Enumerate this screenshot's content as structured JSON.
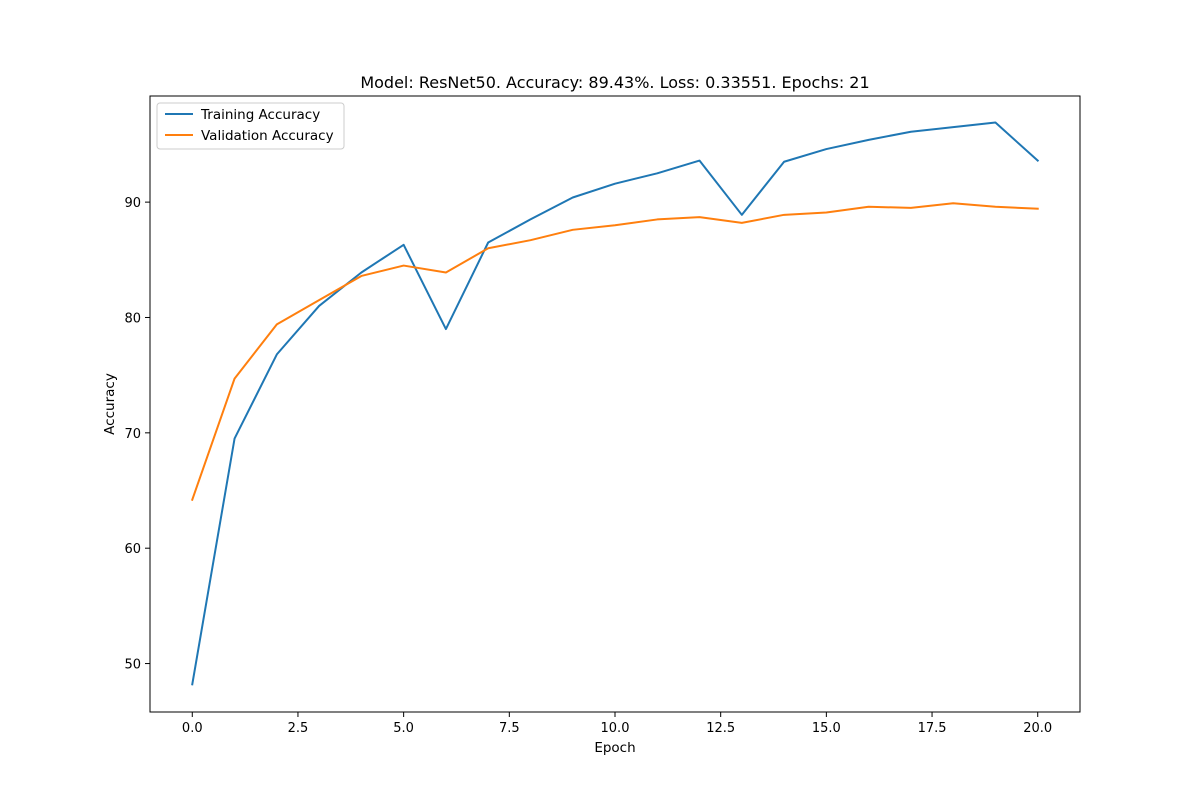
{
  "chart_data": {
    "type": "line",
    "title": "Model: ResNet50. Accuracy: 89.43%. Loss: 0.33551. Epochs: 21",
    "xlabel": "Epoch",
    "ylabel": "Accuracy",
    "xlim": [
      -1.0,
      21.0
    ],
    "ylim": [
      45.8,
      99.2
    ],
    "xticks": [
      0.0,
      2.5,
      5.0,
      7.5,
      10.0,
      12.5,
      15.0,
      17.5,
      20.0
    ],
    "xtick_labels": [
      "0.0",
      "2.5",
      "5.0",
      "7.5",
      "10.0",
      "12.5",
      "15.0",
      "17.5",
      "20.0"
    ],
    "yticks": [
      50,
      60,
      70,
      80,
      90
    ],
    "ytick_labels": [
      "50",
      "60",
      "70",
      "80",
      "90"
    ],
    "grid": false,
    "legend_position": "top-left",
    "x": [
      0,
      1,
      2,
      3,
      4,
      5,
      6,
      7,
      8,
      9,
      10,
      11,
      12,
      13,
      14,
      15,
      16,
      17,
      18,
      19,
      20
    ],
    "series": [
      {
        "name": "Training Accuracy",
        "color": "#1f77b4",
        "values": [
          48.2,
          69.5,
          76.8,
          81.0,
          83.9,
          86.3,
          79.0,
          86.5,
          88.5,
          90.4,
          91.6,
          92.5,
          93.6,
          88.9,
          93.5,
          94.6,
          95.4,
          96.1,
          96.5,
          96.9,
          93.6
        ]
      },
      {
        "name": "Validation Accuracy",
        "color": "#ff7f0e",
        "values": [
          64.2,
          74.7,
          79.4,
          81.5,
          83.6,
          84.5,
          83.9,
          86.0,
          86.7,
          87.6,
          88.0,
          88.5,
          88.7,
          88.2,
          88.9,
          89.1,
          89.6,
          89.5,
          89.9,
          89.6,
          89.43
        ]
      }
    ]
  }
}
